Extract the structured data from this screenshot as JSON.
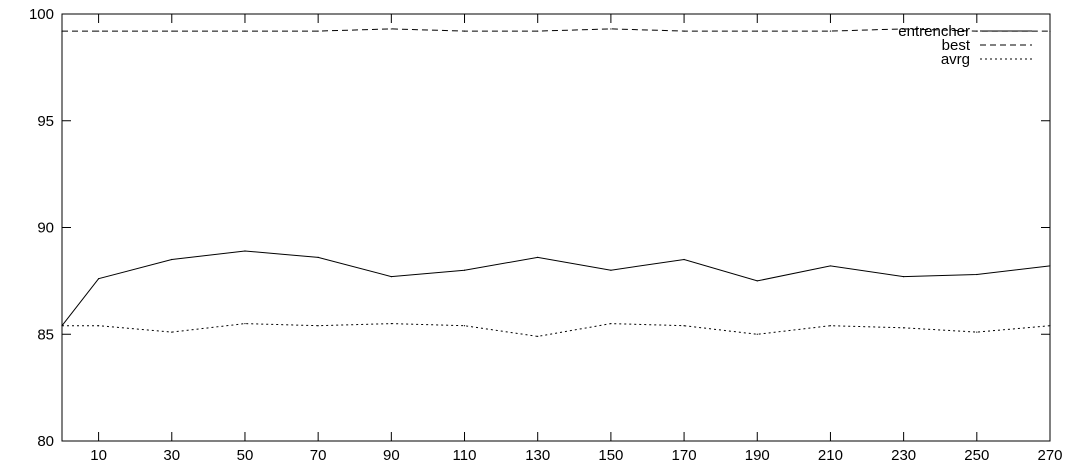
{
  "chart_data": {
    "type": "line",
    "title": "",
    "xlabel": "",
    "ylabel": "",
    "x": [
      0,
      10,
      30,
      50,
      70,
      90,
      110,
      130,
      150,
      170,
      190,
      210,
      230,
      250,
      270
    ],
    "xlim": [
      0,
      270
    ],
    "ylim": [
      80,
      100
    ],
    "xticks": [
      10,
      30,
      50,
      70,
      90,
      110,
      130,
      150,
      170,
      190,
      210,
      230,
      250,
      270
    ],
    "yticks": [
      80,
      85,
      90,
      95,
      100
    ],
    "grid": false,
    "legend_position": "top-right",
    "series": [
      {
        "name": "entrencher",
        "style": "solid",
        "color": "#000000",
        "values": [
          85.4,
          87.6,
          88.5,
          88.9,
          88.6,
          87.7,
          88.0,
          88.6,
          88.0,
          88.5,
          87.5,
          88.2,
          87.7,
          87.8,
          88.2
        ]
      },
      {
        "name": "best",
        "style": "dashed",
        "color": "#000000",
        "values": [
          99.2,
          99.2,
          99.2,
          99.2,
          99.2,
          99.3,
          99.2,
          99.2,
          99.3,
          99.2,
          99.2,
          99.2,
          99.3,
          99.2,
          99.2
        ]
      },
      {
        "name": "avrg",
        "style": "dotted",
        "color": "#000000",
        "values": [
          85.4,
          85.4,
          85.1,
          85.5,
          85.4,
          85.5,
          85.4,
          84.9,
          85.5,
          85.4,
          85.0,
          85.4,
          85.3,
          85.1,
          85.4
        ]
      }
    ]
  }
}
